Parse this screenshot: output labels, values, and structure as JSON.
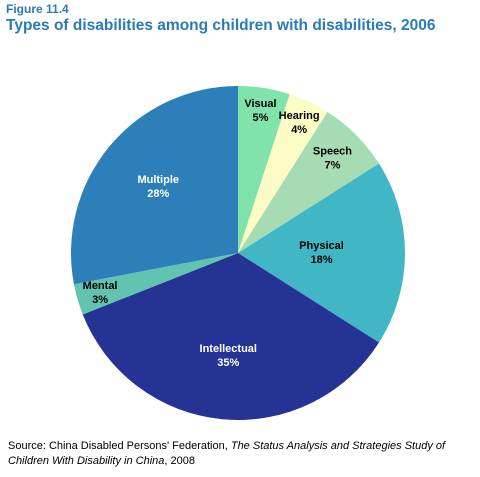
{
  "chart_data": {
    "type": "pie",
    "figure_label": "Figure 11.4",
    "title": "Types of disabilities among children with disabilities, 2006",
    "categories": [
      "Visual",
      "Hearing",
      "Speech",
      "Physical",
      "Intellectual",
      "Mental",
      "Multiple"
    ],
    "values": [
      5,
      4,
      7,
      18,
      35,
      3,
      28
    ],
    "value_labels": [
      "5%",
      "4%",
      "7%",
      "18%",
      "35%",
      "3%",
      "28%"
    ],
    "colors": [
      "#7fe3ab",
      "#fdfcc6",
      "#a6dcb4",
      "#41b6c4",
      "#253494",
      "#62c3b0",
      "#2c7fb8"
    ],
    "source": {
      "prefix": "Source: China Disabled Persons' Federation, ",
      "title": "The Status Analysis and Strategies Study of Children With Disability in China",
      "suffix": ", 2008"
    }
  }
}
